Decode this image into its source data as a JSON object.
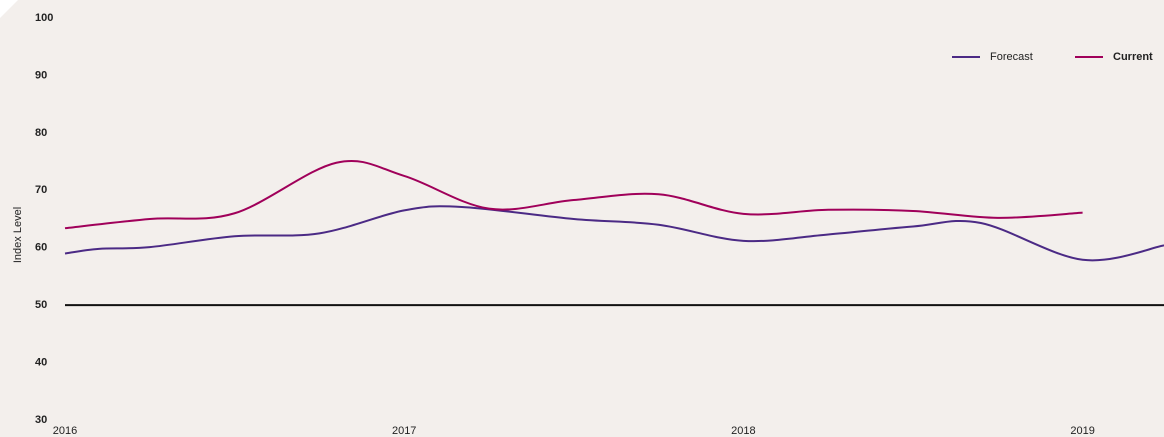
{
  "chart_data": {
    "type": "line",
    "y_label": "Index Level",
    "x": [
      2016.0,
      2016.1,
      2016.25,
      2016.5,
      2016.75,
      2016.8,
      2017.0,
      2017.17,
      2017.25,
      2017.5,
      2017.75,
      2018.0,
      2018.25,
      2018.5,
      2018.7,
      2018.75,
      2019.0,
      2019.24
    ],
    "series": [
      {
        "name": "Forecast",
        "color": "#4b2a85",
        "values": [
          59,
          59.8,
          60.1,
          62,
          62.5,
          null,
          66.5,
          67.1,
          null,
          65,
          64,
          61.2,
          62.3,
          63.7,
          64.3,
          null,
          57.9,
          60.4
        ]
      },
      {
        "name": "Current",
        "color": "#a0005a",
        "values": [
          63.4,
          null,
          65,
          66,
          null,
          74.8,
          72.5,
          null,
          66.8,
          68.3,
          69.3,
          65.9,
          66.6,
          66.4,
          null,
          65.2,
          66.1,
          null
        ]
      }
    ],
    "xlim": [
      2016,
      2019.24
    ],
    "xticks": [
      2016,
      2017,
      2018,
      2019
    ],
    "ylim": [
      30,
      100
    ],
    "yticks": [
      30,
      40,
      50,
      60,
      70,
      80,
      90,
      100
    ],
    "reference_line": 50,
    "legend": "top-right"
  }
}
